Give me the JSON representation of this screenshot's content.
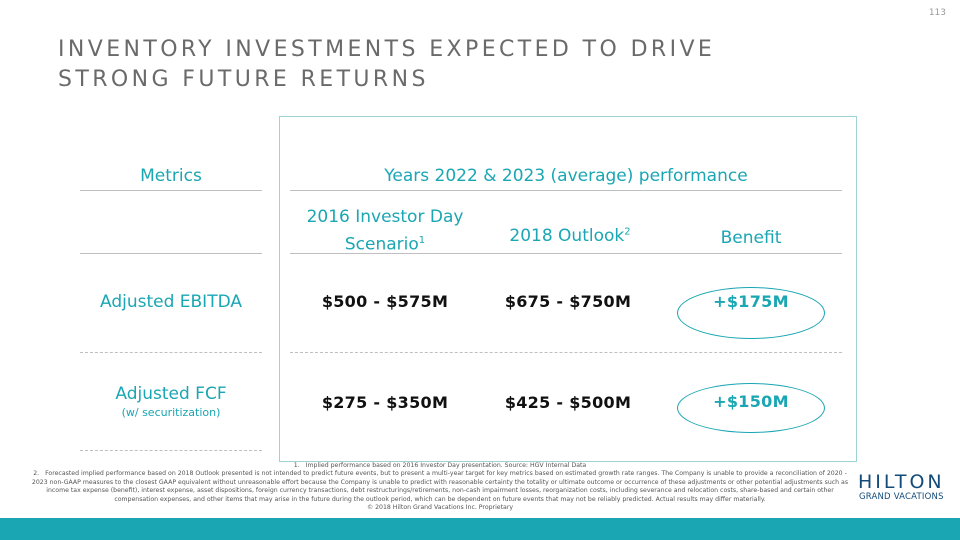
{
  "page_number": "113",
  "title_line1": "INVENTORY INVESTMENTS EXPECTED TO DRIVE",
  "title_line2": "STRONG FUTURE RETURNS",
  "table": {
    "metrics_header": "Metrics",
    "period_header": "Years 2022 & 2023 (average) performance",
    "col1_line1": "2016 Investor Day",
    "col1_line2": "Scenario",
    "col1_sup": "1",
    "col2_label": "2018 Outlook",
    "col2_sup": "2",
    "col3_label": "Benefit",
    "rows": [
      {
        "metric": "Adjusted EBITDA",
        "metric_sub": "",
        "investor_day": "$500 - $575M",
        "outlook": "$675 - $750M",
        "benefit": "+$175M"
      },
      {
        "metric": "Adjusted FCF",
        "metric_sub": "(w/ securitization)",
        "investor_day": "$275 - $350M",
        "outlook": "$425 - $500M",
        "benefit": "+$150M"
      }
    ]
  },
  "footnotes": {
    "fn1_num": "1.",
    "fn1_text": "Implied performance based on 2016 Investor Day presentation. Source: HGV Internal Data",
    "fn2_num": "2.",
    "fn2_text": "Forecasted implied performance based on 2018 Outlook presented is not intended to predict future events, but to present a multi-year target for key metrics based on estimated growth rate ranges. The Company is unable to provide a reconciliation of 2020 - 2023 non-GAAP measures to the closest GAAP equivalent without unreasonable effort because the Company is unable to predict with reasonable certainty the totality or ultimate outcome or occurrence of these adjustments or other potential adjustments such as income tax expense (benefit), interest expense, asset dispositions, foreign currency transactions, debt restructurings/retirements, non-cash impairment losses, reorganization costs, including severance and relocation costs, share-based and certain other compensation expenses, and other items that may arise in the future during the outlook period, which can be dependent on future events that may not be reliably predicted. Actual results may differ materially.",
    "copyright": "© 2018 Hilton Grand Vacations Inc. Proprietary"
  },
  "logo": {
    "main": "HILTON",
    "sub": "GRAND VACATIONS"
  },
  "colors": {
    "accent": "#1aa6b3",
    "brand": "#124b7a"
  }
}
